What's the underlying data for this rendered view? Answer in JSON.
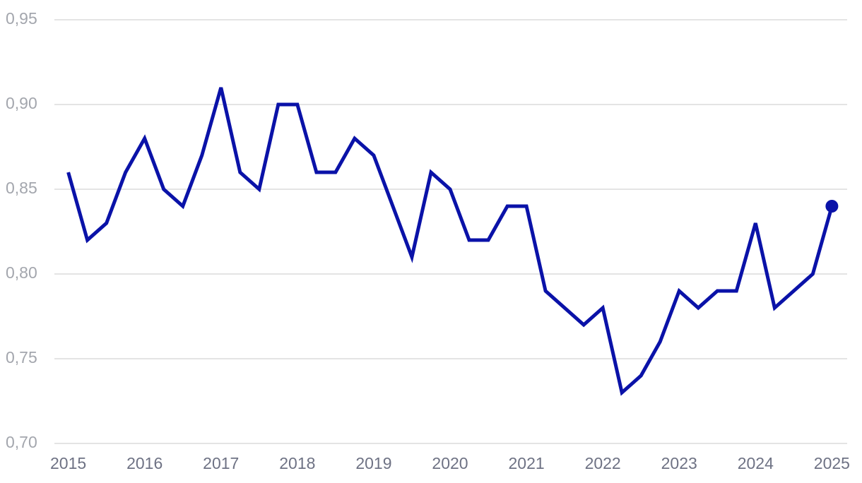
{
  "chart_data": {
    "type": "line",
    "x": [
      2015,
      2015.25,
      2015.5,
      2015.75,
      2016,
      2016.25,
      2016.5,
      2016.75,
      2017,
      2017.25,
      2017.5,
      2017.75,
      2018,
      2018.25,
      2018.5,
      2018.75,
      2019,
      2019.25,
      2019.5,
      2019.75,
      2020,
      2020.25,
      2020.5,
      2020.75,
      2021,
      2021.25,
      2021.5,
      2021.75,
      2022,
      2022.25,
      2022.5,
      2022.75,
      2023,
      2023.25,
      2023.5,
      2023.75,
      2024,
      2024.25,
      2024.5,
      2024.75,
      2025
    ],
    "values": [
      0.86,
      0.82,
      0.83,
      0.86,
      0.88,
      0.85,
      0.84,
      0.87,
      0.91,
      0.86,
      0.85,
      0.9,
      0.9,
      0.86,
      0.86,
      0.88,
      0.87,
      0.84,
      0.81,
      0.86,
      0.85,
      0.82,
      0.82,
      0.84,
      0.84,
      0.79,
      0.78,
      0.77,
      0.78,
      0.73,
      0.74,
      0.76,
      0.79,
      0.78,
      0.79,
      0.79,
      0.83,
      0.78,
      0.79,
      0.8,
      0.84
    ],
    "color": "#0a12a8",
    "highlight_last": true,
    "xlim": [
      2014.8,
      2025.2
    ],
    "xticks": [
      2015,
      2016,
      2017,
      2018,
      2019,
      2020,
      2021,
      2022,
      2023,
      2024,
      2025
    ],
    "ylim": [
      0.7,
      0.95
    ],
    "yticks": [
      {
        "value": 0.7,
        "label": "0,70"
      },
      {
        "value": 0.75,
        "label": "0,75"
      },
      {
        "value": 0.8,
        "label": "0,80"
      },
      {
        "value": 0.85,
        "label": "0,85"
      },
      {
        "value": 0.9,
        "label": "0,90"
      },
      {
        "value": 0.95,
        "label": "0,95"
      }
    ],
    "grid": true
  }
}
